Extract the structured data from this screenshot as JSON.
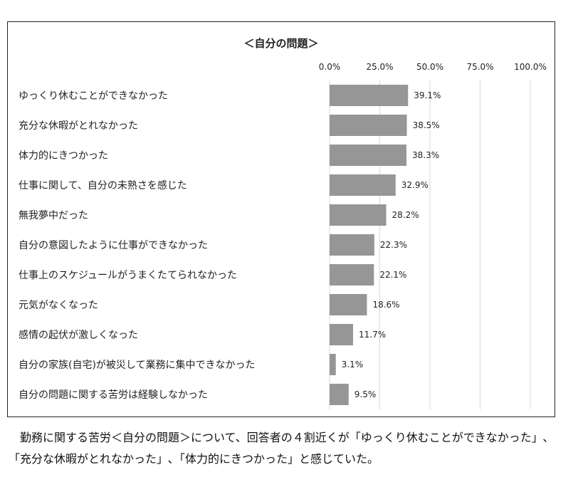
{
  "chart_data": {
    "type": "bar",
    "orientation": "horizontal",
    "title": "＜自分の問題＞",
    "categories": [
      "ゆっくり休むことができなかった",
      "充分な休暇がとれなかった",
      "体力的にきつかった",
      "仕事に関して、自分の未熟さを感じた",
      "無我夢中だった",
      "自分の意図したように仕事ができなかった",
      "仕事上のスケジュールがうまくたてられなかった",
      "元気がなくなった",
      "感情の起伏が激しくなった",
      "自分の家族(自宅)が被災して業務に集中できなかった",
      "自分の問題に関する苦労は経験しなかった"
    ],
    "values": [
      39.1,
      38.5,
      38.3,
      32.9,
      28.2,
      22.3,
      22.1,
      18.6,
      11.7,
      3.1,
      9.5
    ],
    "value_labels": [
      "39.1%",
      "38.5%",
      "38.3%",
      "32.9%",
      "28.2%",
      "22.3%",
      "22.1%",
      "18.6%",
      "11.7%",
      "3.1%",
      "9.5%"
    ],
    "xlim": [
      0,
      100
    ],
    "xticks": [
      0,
      25,
      50,
      75,
      100
    ],
    "xtick_labels": [
      "0.0%",
      "25.0%",
      "50.0%",
      "75.0%",
      "100.0%"
    ],
    "x_axis_position": "top",
    "grid": true,
    "bar_color": "#969696",
    "grid_color": "#d9d9d9"
  },
  "caption": "勤務に関する苦労＜自分の問題＞について、回答者の４割近くが「ゆっくり休むことができなかった」､「充分な休暇がとれなかった」､「体力的にきつかった」と感じていた。"
}
